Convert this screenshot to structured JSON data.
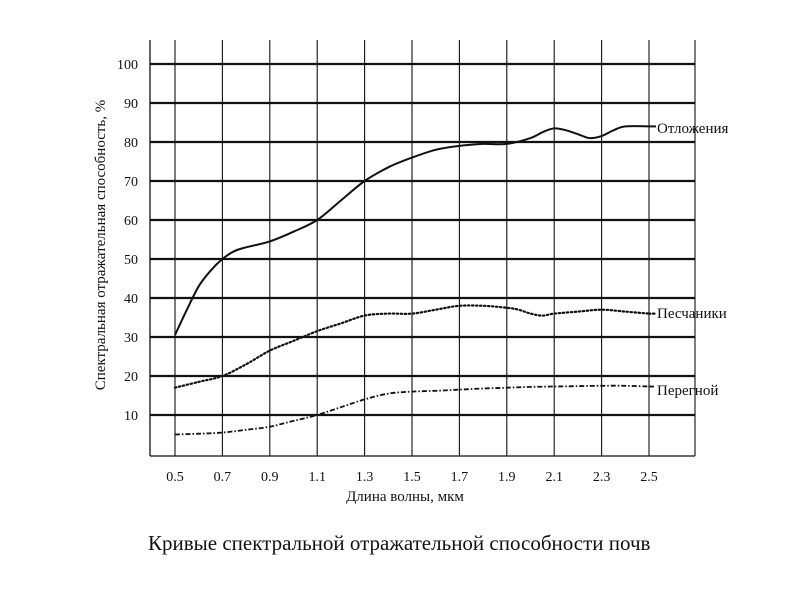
{
  "caption": "Кривые спектральной отражательной способности почв",
  "chart_data": {
    "type": "line",
    "title": "",
    "xlabel": "Длина волны, мкм",
    "ylabel": "Спектральная отражательная способность, %",
    "xlim": [
      0.5,
      2.6
    ],
    "ylim": [
      0,
      105
    ],
    "x_ticks": [
      "0.5",
      "0.7",
      "0.9",
      "1.1",
      "1.3",
      "1.5",
      "1.7",
      "1.9",
      "2.1",
      "2.3",
      "2.5"
    ],
    "y_ticks": [
      "10",
      "20",
      "30",
      "40",
      "50",
      "60",
      "70",
      "80",
      "90",
      "100"
    ],
    "grid": true,
    "legend": "labels at line ends (right)",
    "series": [
      {
        "name": "Отложения",
        "style": "solid",
        "x": [
          0.5,
          0.55,
          0.6,
          0.65,
          0.7,
          0.75,
          0.8,
          0.9,
          1.0,
          1.1,
          1.2,
          1.3,
          1.4,
          1.5,
          1.6,
          1.7,
          1.8,
          1.9,
          2.0,
          2.05,
          2.1,
          2.15,
          2.2,
          2.25,
          2.3,
          2.35,
          2.4,
          2.5
        ],
        "y": [
          30.5,
          37,
          43,
          47,
          50,
          52,
          53,
          54.5,
          57,
          60,
          65,
          70,
          73.5,
          76,
          78,
          79,
          79.5,
          79.5,
          81,
          82.5,
          83.5,
          83,
          82,
          81,
          81.5,
          83,
          84,
          84
        ]
      },
      {
        "name": "Песчаники",
        "style": "dotted",
        "x": [
          0.5,
          0.6,
          0.7,
          0.8,
          0.9,
          1.0,
          1.1,
          1.2,
          1.3,
          1.4,
          1.5,
          1.6,
          1.7,
          1.8,
          1.9,
          1.95,
          2.0,
          2.05,
          2.1,
          2.2,
          2.3,
          2.4,
          2.5
        ],
        "y": [
          17,
          18.5,
          20,
          23,
          26.5,
          29,
          31.5,
          33.5,
          35.5,
          36,
          36,
          37,
          38,
          38,
          37.5,
          37,
          36,
          35.5,
          36,
          36.5,
          37,
          36.5,
          36
        ]
      },
      {
        "name": "Перегной",
        "style": "dash-dot",
        "x": [
          0.5,
          0.6,
          0.7,
          0.8,
          0.9,
          1.0,
          1.1,
          1.2,
          1.3,
          1.4,
          1.5,
          1.6,
          1.7,
          1.8,
          1.9,
          2.0,
          2.1,
          2.2,
          2.3,
          2.4,
          2.5
        ],
        "y": [
          5,
          5.2,
          5.5,
          6.2,
          7,
          8.5,
          10,
          12,
          14,
          15.5,
          16,
          16.2,
          16.5,
          16.8,
          17,
          17.2,
          17.3,
          17.4,
          17.5,
          17.5,
          17.3
        ]
      }
    ]
  }
}
